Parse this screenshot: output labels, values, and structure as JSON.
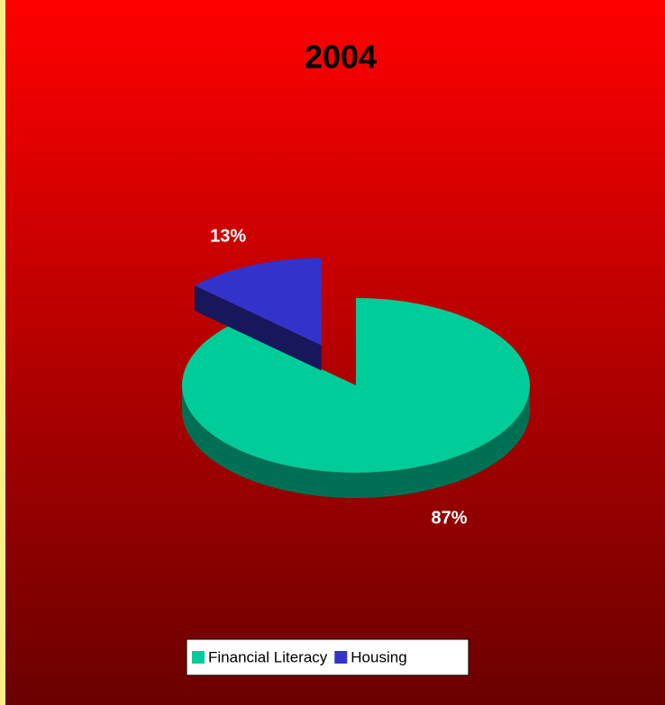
{
  "chart_data": {
    "type": "pie",
    "title": "2004",
    "categories": [
      "Financial Literacy",
      "Housing"
    ],
    "values": [
      87,
      13
    ],
    "value_labels": [
      "87%",
      "13%"
    ],
    "colors": [
      "#00cc99",
      "#3333cc"
    ],
    "legend": "bottom"
  }
}
